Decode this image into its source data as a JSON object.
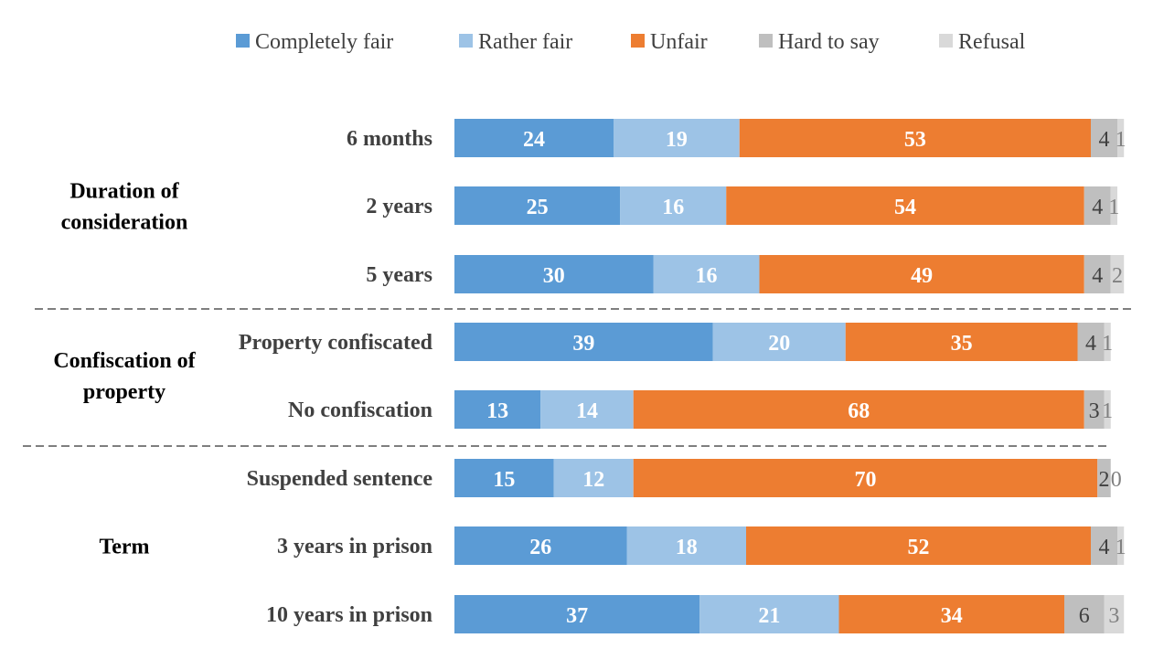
{
  "chart_data": {
    "type": "bar",
    "orientation": "horizontal",
    "stacked": true,
    "legend_position": "top",
    "grid": false,
    "xlim": [
      0,
      101
    ],
    "series": [
      {
        "name": "Completely fair",
        "color": "#5B9BD5",
        "values": [
          24,
          25,
          30,
          39,
          13,
          15,
          26,
          37
        ]
      },
      {
        "name": "Rather fair",
        "color": "#9DC3E6",
        "values": [
          19,
          16,
          16,
          20,
          14,
          12,
          18,
          21
        ]
      },
      {
        "name": "Unfair",
        "color": "#ED7D31",
        "values": [
          53,
          54,
          49,
          35,
          68,
          70,
          52,
          34
        ]
      },
      {
        "name": "Hard to say",
        "color": "#BFBFBF",
        "values": [
          4,
          4,
          4,
          4,
          3,
          2,
          4,
          6
        ]
      },
      {
        "name": "Refusal",
        "color": "#D9D9D9",
        "values": [
          1,
          1,
          2,
          1,
          1,
          0,
          1,
          3
        ]
      }
    ],
    "categories": [
      "6 months",
      "2 years",
      "5 years",
      "Property confiscated",
      "No confiscation",
      "Suspended sentence",
      "3 years in prison",
      "10 years in prison"
    ],
    "groups": [
      {
        "label": "Duration of consideration",
        "lines": [
          "Duration of",
          "consideration"
        ],
        "categories": [
          0,
          1,
          2
        ]
      },
      {
        "label": "Confiscation of property",
        "lines": [
          "Confiscation of",
          "property"
        ],
        "categories": [
          3,
          4
        ]
      },
      {
        "label": "Term",
        "lines": [
          "Term"
        ],
        "categories": [
          5,
          6,
          7
        ]
      }
    ]
  }
}
